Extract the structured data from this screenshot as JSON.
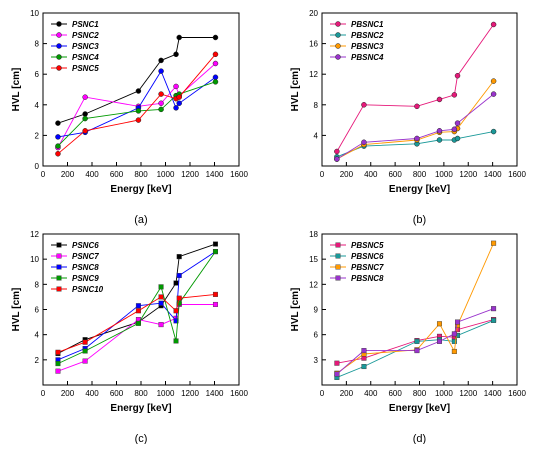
{
  "chart_data": [
    {
      "type": "line",
      "panel_label": "(a)",
      "xlabel": "Energy [keV]",
      "ylabel": "HVL [cm]",
      "xlim": [
        0,
        1600
      ],
      "ylim": [
        0,
        10
      ],
      "xticks": [
        0,
        200,
        400,
        600,
        800,
        1000,
        1200,
        1400,
        1600
      ],
      "yticks": [
        0,
        2,
        4,
        6,
        8,
        10
      ],
      "legend_position": "top-left",
      "marker": "circle",
      "series": [
        {
          "name": "PSNC1",
          "color": "#000000",
          "x": [
            122,
            344,
            779,
            964,
            1086,
            1112,
            1408
          ],
          "y": [
            2.8,
            3.4,
            4.9,
            6.9,
            7.3,
            8.4,
            8.4
          ]
        },
        {
          "name": "PSNC2",
          "color": "#ff00ff",
          "x": [
            122,
            344,
            779,
            964,
            1086,
            1112,
            1408
          ],
          "y": [
            1.2,
            4.5,
            3.9,
            4.1,
            5.2,
            4.6,
            6.7
          ]
        },
        {
          "name": "PSNC3",
          "color": "#0000ff",
          "x": [
            122,
            344,
            779,
            964,
            1086,
            1112,
            1408
          ],
          "y": [
            1.9,
            2.2,
            3.8,
            6.2,
            3.8,
            4.1,
            5.8
          ]
        },
        {
          "name": "PSNC4",
          "color": "#009900",
          "x": [
            122,
            344,
            779,
            964,
            1086,
            1112,
            1408
          ],
          "y": [
            1.3,
            3.1,
            3.6,
            3.7,
            4.6,
            4.7,
            5.5
          ]
        },
        {
          "name": "PSNC5",
          "color": "#ff0000",
          "x": [
            122,
            344,
            779,
            964,
            1086,
            1112,
            1408
          ],
          "y": [
            0.8,
            2.3,
            3.0,
            4.7,
            4.4,
            4.5,
            7.3
          ]
        }
      ]
    },
    {
      "type": "line",
      "panel_label": "(b)",
      "xlabel": "Energy [keV]",
      "ylabel": "HVL [cm]",
      "xlim": [
        0,
        1600
      ],
      "ylim": [
        0,
        20
      ],
      "xticks": [
        0,
        200,
        400,
        600,
        800,
        1000,
        1200,
        1400,
        1600
      ],
      "yticks": [
        4,
        8,
        12,
        16,
        20
      ],
      "legend_position": "top-left",
      "marker": "circle",
      "series": [
        {
          "name": "PBSNC1",
          "color": "#e6197a",
          "x": [
            122,
            344,
            779,
            964,
            1086,
            1112,
            1408
          ],
          "y": [
            1.9,
            8.0,
            7.8,
            8.7,
            9.3,
            11.8,
            18.5
          ]
        },
        {
          "name": "PBSNC2",
          "color": "#1a9999",
          "x": [
            122,
            344,
            779,
            964,
            1086,
            1112,
            1408
          ],
          "y": [
            1.2,
            2.6,
            2.9,
            3.4,
            3.4,
            3.6,
            4.5
          ]
        },
        {
          "name": "PBSNC3",
          "color": "#ff9900",
          "x": [
            122,
            344,
            779,
            964,
            1086,
            1112,
            1408
          ],
          "y": [
            0.9,
            2.8,
            3.4,
            4.4,
            4.5,
            4.9,
            11.1
          ]
        },
        {
          "name": "PBSNC4",
          "color": "#9933cc",
          "x": [
            122,
            344,
            779,
            964,
            1086,
            1112,
            1408
          ],
          "y": [
            0.9,
            3.1,
            3.6,
            4.6,
            4.8,
            5.6,
            9.4
          ]
        }
      ]
    },
    {
      "type": "line",
      "panel_label": "(c)",
      "xlabel": "Energy [keV]",
      "ylabel": "HVL [cm]",
      "xlim": [
        0,
        1600
      ],
      "ylim": [
        0,
        12
      ],
      "xticks": [
        0,
        200,
        400,
        600,
        800,
        1000,
        1200,
        1400,
        1600
      ],
      "yticks": [
        2,
        4,
        6,
        8,
        10,
        12
      ],
      "legend_position": "top-left",
      "marker": "square",
      "series": [
        {
          "name": "PSNC6",
          "color": "#000000",
          "x": [
            122,
            344,
            779,
            964,
            1086,
            1112,
            1408
          ],
          "y": [
            2.5,
            3.6,
            5.0,
            6.3,
            8.1,
            10.2,
            11.2
          ]
        },
        {
          "name": "PSNC7",
          "color": "#ff00ff",
          "x": [
            122,
            344,
            779,
            964,
            1086,
            1112,
            1408
          ],
          "y": [
            1.1,
            1.9,
            5.2,
            4.8,
            5.3,
            6.4,
            6.4
          ]
        },
        {
          "name": "PSNC8",
          "color": "#0000ff",
          "x": [
            122,
            344,
            779,
            964,
            1086,
            1112,
            1408
          ],
          "y": [
            2.0,
            2.9,
            6.3,
            6.5,
            5.1,
            8.7,
            10.6
          ]
        },
        {
          "name": "PSNC9",
          "color": "#009900",
          "x": [
            122,
            344,
            779,
            964,
            1086,
            1112,
            1408
          ],
          "y": [
            1.7,
            2.7,
            4.9,
            7.8,
            3.5,
            6.5,
            10.6
          ]
        },
        {
          "name": "PSNC10",
          "color": "#ff0000",
          "x": [
            122,
            344,
            779,
            964,
            1086,
            1112,
            1408
          ],
          "y": [
            2.6,
            3.4,
            5.9,
            7.0,
            5.9,
            6.9,
            7.2
          ]
        }
      ]
    },
    {
      "type": "line",
      "panel_label": "(d)",
      "xlabel": "Energy [keV]",
      "ylabel": "HVL [cm]",
      "xlim": [
        0,
        1600
      ],
      "ylim": [
        0,
        18
      ],
      "xticks": [
        0,
        200,
        400,
        600,
        800,
        1000,
        1200,
        1400,
        1600
      ],
      "yticks": [
        3,
        6,
        9,
        12,
        15,
        18
      ],
      "legend_position": "top-left",
      "marker": "square",
      "series": [
        {
          "name": "PBSNC5",
          "color": "#e6197a",
          "x": [
            122,
            344,
            779,
            964,
            1086,
            1112,
            1408
          ],
          "y": [
            2.6,
            3.2,
            5.3,
            5.8,
            5.7,
            6.6,
            7.8
          ]
        },
        {
          "name": "PBSNC6",
          "color": "#1a9999",
          "x": [
            122,
            344,
            779,
            964,
            1086,
            1112,
            1408
          ],
          "y": [
            0.9,
            2.2,
            5.2,
            5.4,
            5.2,
            5.9,
            7.7
          ]
        },
        {
          "name": "PBSNC7",
          "color": "#ff9900",
          "x": [
            122,
            344,
            779,
            964,
            1086,
            1112,
            1408
          ],
          "y": [
            1.4,
            3.7,
            4.2,
            7.3,
            4.0,
            7.1,
            16.9
          ]
        },
        {
          "name": "PBSNC8",
          "color": "#9933cc",
          "x": [
            122,
            344,
            779,
            964,
            1086,
            1112,
            1408
          ],
          "y": [
            1.3,
            4.1,
            4.1,
            5.2,
            6.1,
            7.5,
            9.1
          ]
        }
      ]
    }
  ]
}
